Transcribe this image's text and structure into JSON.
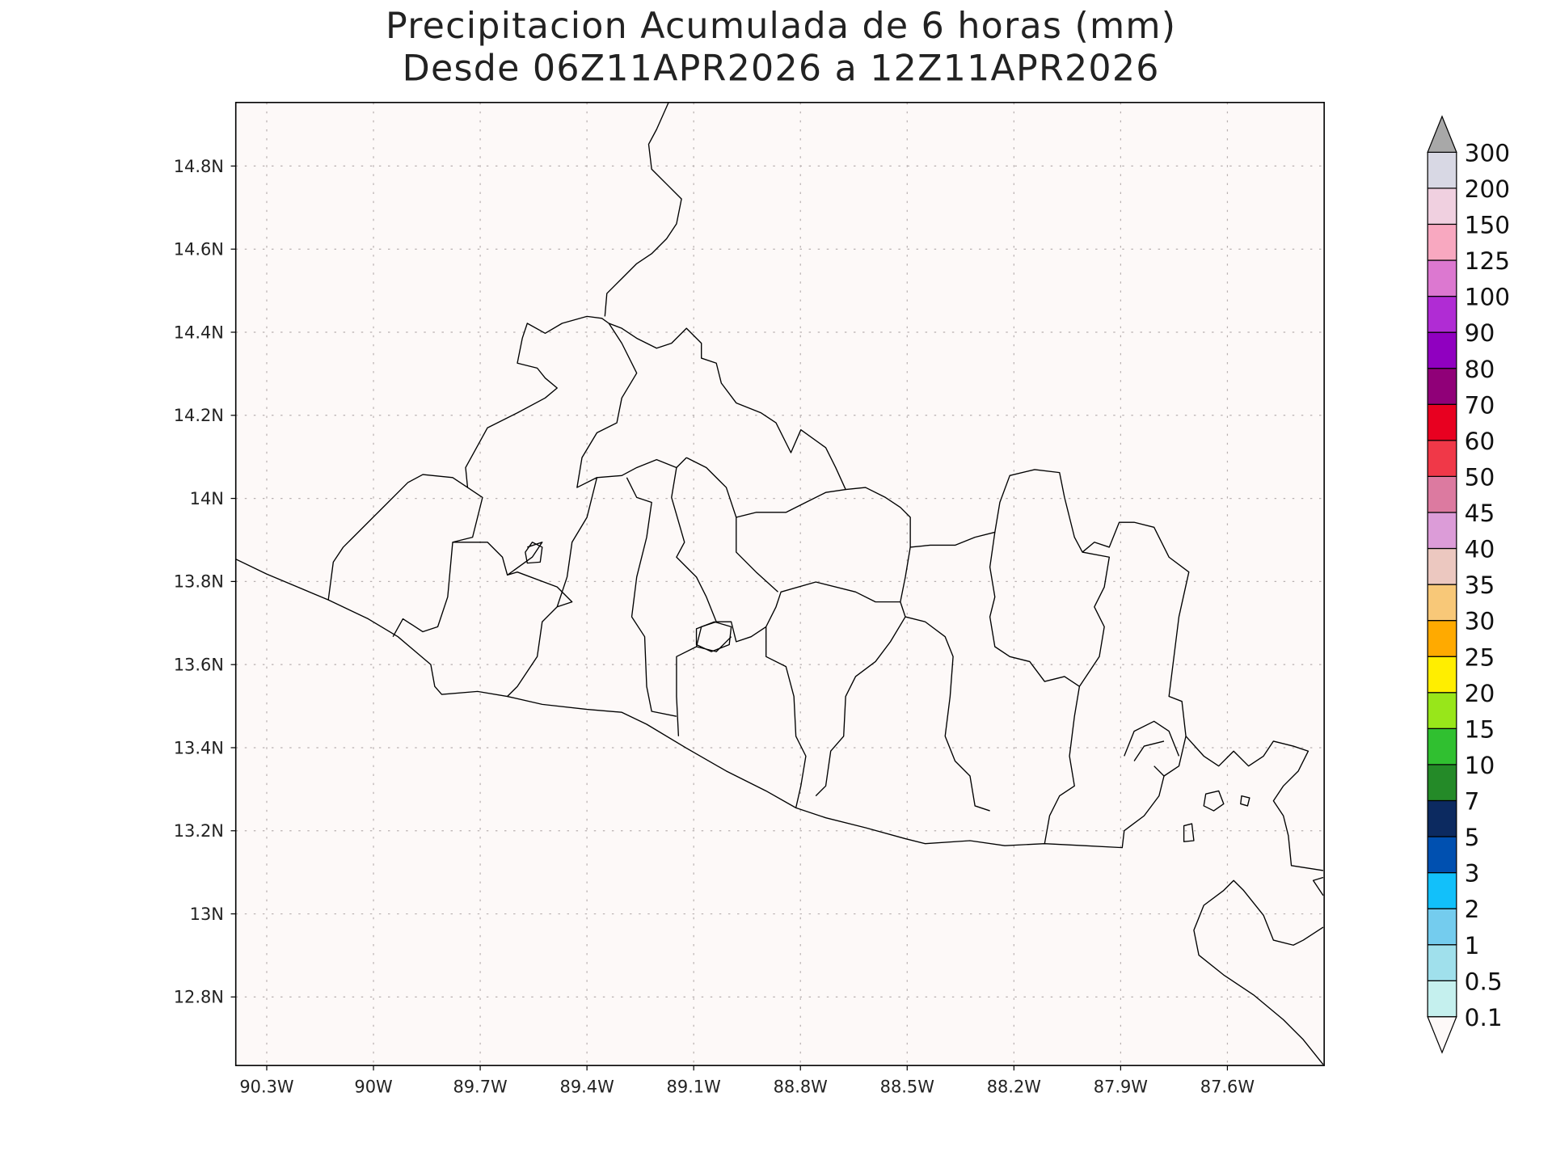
{
  "title": {
    "line1": "Precipitacion Acumulada de 6 horas (mm)",
    "line2": "Desde 06Z11APR2026 a 12Z11APR2026"
  },
  "map": {
    "background": "#fdf9f8",
    "lon_range": [
      -90.387,
      -87.328
    ],
    "lat_range": [
      12.635,
      14.953
    ],
    "lon_ticks": [
      {
        "value": -90.3,
        "label": "90.3W"
      },
      {
        "value": -90.0,
        "label": "90W"
      },
      {
        "value": -89.7,
        "label": "89.7W"
      },
      {
        "value": -89.4,
        "label": "89.4W"
      },
      {
        "value": -89.1,
        "label": "89.1W"
      },
      {
        "value": -88.8,
        "label": "88.8W"
      },
      {
        "value": -88.5,
        "label": "88.5W"
      },
      {
        "value": -88.2,
        "label": "88.2W"
      },
      {
        "value": -87.9,
        "label": "87.9W"
      },
      {
        "value": -87.6,
        "label": "87.6W"
      }
    ],
    "lat_ticks": [
      {
        "value": 14.8,
        "label": "14.8N"
      },
      {
        "value": 14.6,
        "label": "14.6N"
      },
      {
        "value": 14.4,
        "label": "14.4N"
      },
      {
        "value": 14.2,
        "label": "14.2N"
      },
      {
        "value": 14.0,
        "label": "14N"
      },
      {
        "value": 13.8,
        "label": "13.8N"
      },
      {
        "value": 13.6,
        "label": "13.6N"
      },
      {
        "value": 13.4,
        "label": "13.4N"
      },
      {
        "value": 13.2,
        "label": "13.2N"
      },
      {
        "value": 13.0,
        "label": "13N"
      },
      {
        "value": 12.8,
        "label": "12.8N"
      }
    ],
    "grid": "dotted"
  },
  "colorbar": {
    "levels": [
      "0.1",
      "0.5",
      "1",
      "2",
      "3",
      "5",
      "7",
      "10",
      "15",
      "20",
      "25",
      "30",
      "35",
      "40",
      "45",
      "50",
      "60",
      "70",
      "80",
      "90",
      "100",
      "125",
      "150",
      "200",
      "300"
    ],
    "colors": [
      "#c5f0ee",
      "#a0e0ec",
      "#74ccee",
      "#12c0fa",
      "#0050b0",
      "#0c2a60",
      "#248a28",
      "#30c030",
      "#98e61a",
      "#ffee00",
      "#ffaa00",
      "#f8c878",
      "#ecc8c0",
      "#dc9cd8",
      "#dc7aa0",
      "#f03848",
      "#e80020",
      "#900078",
      "#9000c0",
      "#b02cd4",
      "#dc78d0",
      "#f8a8c0",
      "#f0d0e0",
      "#d8d8e4"
    ],
    "over_color": "#a8a8a8",
    "under_color": "#fdf9f8"
  }
}
